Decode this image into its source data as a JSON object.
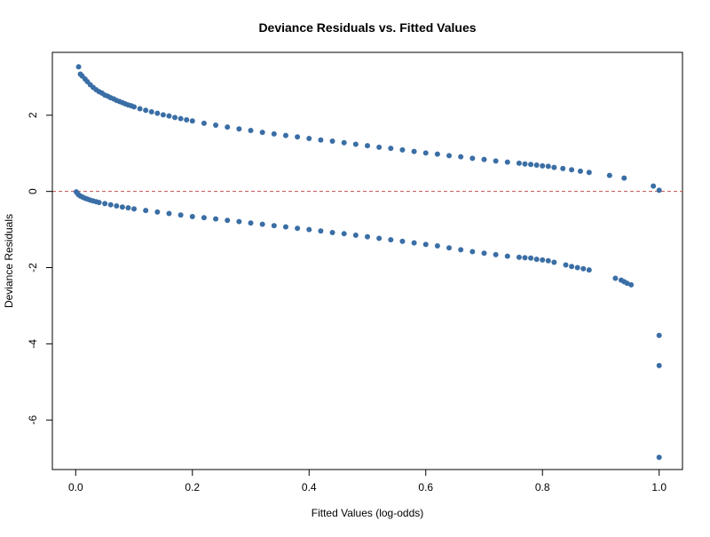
{
  "chart_data": {
    "type": "scatter",
    "title": "Deviance Residuals vs. Fitted Values",
    "xlabel": "Fitted Values (log-odds)",
    "ylabel": "Deviance Residuals",
    "xlim": [
      -0.04,
      1.04
    ],
    "ylim": [
      -7.3,
      3.65
    ],
    "xticks": [
      0,
      0.2,
      0.4,
      0.6,
      0.8,
      1
    ],
    "xtick_labels": [
      "0.0",
      "0.2",
      "0.4",
      "0.6",
      "0.8",
      "1.0"
    ],
    "yticks": [
      -6,
      -4,
      -2,
      0,
      2
    ],
    "ytick_labels": [
      "-6",
      "-4",
      "-2",
      "0",
      "2"
    ],
    "reference_line": {
      "y": 0,
      "style": "dashed",
      "color": "#c0504d"
    },
    "point_color": "#3a6ea5",
    "grid": false,
    "series": [
      {
        "points": [
          [
            0.005,
            3.27
          ],
          [
            0.008,
            3.08
          ],
          [
            0.011,
            3.03
          ],
          [
            0.016,
            2.95
          ],
          [
            0.02,
            2.88
          ],
          [
            0.025,
            2.8
          ],
          [
            0.03,
            2.73
          ],
          [
            0.035,
            2.67
          ],
          [
            0.04,
            2.62
          ],
          [
            0.045,
            2.58
          ],
          [
            0.05,
            2.53
          ],
          [
            0.055,
            2.5
          ],
          [
            0.06,
            2.46
          ],
          [
            0.065,
            2.43
          ],
          [
            0.07,
            2.39
          ],
          [
            0.075,
            2.36
          ],
          [
            0.08,
            2.33
          ],
          [
            0.085,
            2.3
          ],
          [
            0.09,
            2.27
          ],
          [
            0.095,
            2.25
          ],
          [
            0.1,
            2.22
          ],
          [
            0.11,
            2.17
          ],
          [
            0.12,
            2.13
          ],
          [
            0.13,
            2.09
          ],
          [
            0.14,
            2.05
          ],
          [
            0.15,
            2.01
          ],
          [
            0.16,
            1.98
          ],
          [
            0.17,
            1.94
          ],
          [
            0.18,
            1.91
          ],
          [
            0.19,
            1.88
          ],
          [
            0.2,
            1.85
          ],
          [
            0.22,
            1.79
          ],
          [
            0.24,
            1.74
          ],
          [
            0.26,
            1.69
          ],
          [
            0.28,
            1.64
          ],
          [
            0.3,
            1.6
          ],
          [
            0.32,
            1.55
          ],
          [
            0.34,
            1.51
          ],
          [
            0.36,
            1.47
          ],
          [
            0.38,
            1.43
          ],
          [
            0.4,
            1.39
          ],
          [
            0.42,
            1.35
          ],
          [
            0.44,
            1.32
          ],
          [
            0.46,
            1.28
          ],
          [
            0.48,
            1.24
          ],
          [
            0.5,
            1.2
          ],
          [
            0.52,
            1.16
          ],
          [
            0.54,
            1.13
          ],
          [
            0.56,
            1.09
          ],
          [
            0.58,
            1.05
          ],
          [
            0.6,
            1.01
          ],
          [
            0.62,
            0.98
          ],
          [
            0.64,
            0.94
          ],
          [
            0.66,
            0.91
          ],
          [
            0.68,
            0.87
          ],
          [
            0.7,
            0.84
          ],
          [
            0.72,
            0.8
          ],
          [
            0.74,
            0.77
          ],
          [
            0.76,
            0.74
          ],
          [
            0.77,
            0.72
          ],
          [
            0.78,
            0.71
          ],
          [
            0.79,
            0.69
          ],
          [
            0.8,
            0.67
          ],
          [
            0.81,
            0.66
          ],
          [
            0.82,
            0.63
          ],
          [
            0.835,
            0.6
          ],
          [
            0.85,
            0.57
          ],
          [
            0.865,
            0.53
          ],
          [
            0.88,
            0.5
          ],
          [
            0.915,
            0.42
          ],
          [
            0.94,
            0.35
          ],
          [
            0.99,
            0.14
          ],
          [
            1.0,
            0.03
          ]
        ]
      },
      {
        "points": [
          [
            0.001,
            -0.01
          ],
          [
            0.003,
            -0.05
          ],
          [
            0.005,
            -0.09
          ],
          [
            0.008,
            -0.12
          ],
          [
            0.012,
            -0.15
          ],
          [
            0.016,
            -0.18
          ],
          [
            0.02,
            -0.2
          ],
          [
            0.025,
            -0.23
          ],
          [
            0.03,
            -0.25
          ],
          [
            0.035,
            -0.27
          ],
          [
            0.04,
            -0.29
          ],
          [
            0.05,
            -0.32
          ],
          [
            0.06,
            -0.35
          ],
          [
            0.07,
            -0.38
          ],
          [
            0.08,
            -0.41
          ],
          [
            0.09,
            -0.43
          ],
          [
            0.1,
            -0.46
          ],
          [
            0.12,
            -0.5
          ],
          [
            0.14,
            -0.54
          ],
          [
            0.16,
            -0.58
          ],
          [
            0.18,
            -0.62
          ],
          [
            0.2,
            -0.66
          ],
          [
            0.22,
            -0.69
          ],
          [
            0.24,
            -0.72
          ],
          [
            0.26,
            -0.76
          ],
          [
            0.28,
            -0.79
          ],
          [
            0.3,
            -0.83
          ],
          [
            0.32,
            -0.86
          ],
          [
            0.34,
            -0.9
          ],
          [
            0.36,
            -0.93
          ],
          [
            0.38,
            -0.97
          ],
          [
            0.4,
            -1.0
          ],
          [
            0.42,
            -1.04
          ],
          [
            0.44,
            -1.08
          ],
          [
            0.46,
            -1.11
          ],
          [
            0.48,
            -1.15
          ],
          [
            0.5,
            -1.19
          ],
          [
            0.52,
            -1.23
          ],
          [
            0.54,
            -1.27
          ],
          [
            0.56,
            -1.31
          ],
          [
            0.58,
            -1.35
          ],
          [
            0.6,
            -1.39
          ],
          [
            0.62,
            -1.43
          ],
          [
            0.64,
            -1.48
          ],
          [
            0.66,
            -1.53
          ],
          [
            0.68,
            -1.58
          ],
          [
            0.7,
            -1.62
          ],
          [
            0.72,
            -1.66
          ],
          [
            0.74,
            -1.7
          ],
          [
            0.76,
            -1.73
          ],
          [
            0.77,
            -1.74
          ],
          [
            0.78,
            -1.75
          ],
          [
            0.79,
            -1.78
          ],
          [
            0.8,
            -1.8
          ],
          [
            0.81,
            -1.82
          ],
          [
            0.82,
            -1.86
          ],
          [
            0.84,
            -1.93
          ],
          [
            0.85,
            -1.97
          ],
          [
            0.86,
            -2.0
          ],
          [
            0.87,
            -2.03
          ],
          [
            0.88,
            -2.06
          ],
          [
            0.925,
            -2.28
          ],
          [
            0.935,
            -2.33
          ],
          [
            0.94,
            -2.37
          ],
          [
            0.945,
            -2.41
          ],
          [
            0.952,
            -2.45
          ],
          [
            1.0,
            -3.78
          ],
          [
            1.0,
            -4.57
          ],
          [
            1.0,
            -6.98
          ]
        ]
      }
    ]
  }
}
